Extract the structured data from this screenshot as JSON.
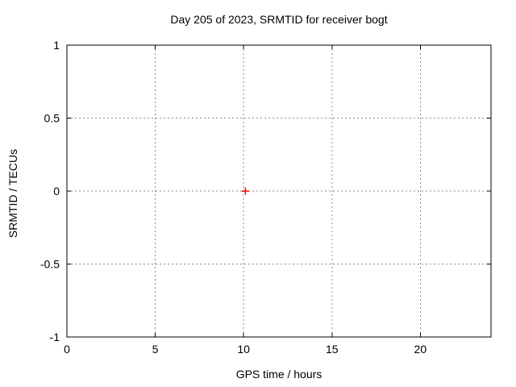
{
  "chart_data": {
    "type": "scatter",
    "title": "Day 205 of 2023, SRMTID for receiver bogt",
    "xlabel": "GPS time / hours",
    "ylabel": "SRMTID / TECUs",
    "xlim": [
      0,
      24
    ],
    "ylim": [
      -1,
      1
    ],
    "xticks": [
      0,
      5,
      10,
      15,
      20
    ],
    "xtick_labels": [
      "0",
      "5",
      "10",
      "15",
      "20"
    ],
    "yticks": [
      -1,
      -0.5,
      0,
      0.5,
      1
    ],
    "ytick_labels": [
      "-1",
      "-0.5",
      "0",
      "0.5",
      "1"
    ],
    "grid": true,
    "grid_style": "dotted",
    "legend": "none",
    "series": [
      {
        "name": "SRMTID",
        "marker": "plus",
        "color": "#ff0000",
        "points": [
          {
            "x": 10.1,
            "y": 0.0
          }
        ]
      }
    ],
    "colors": {
      "background": "#ffffff",
      "border": "#000000",
      "grid": "#8c8c8c",
      "text": "#000000"
    }
  }
}
